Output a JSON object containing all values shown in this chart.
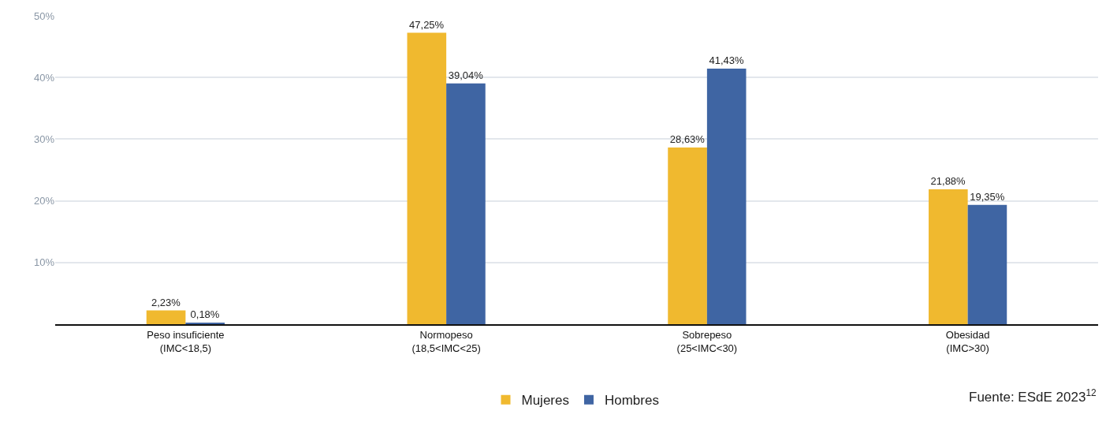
{
  "chart_data": {
    "type": "bar",
    "categories": [
      "Peso insuficiente\n(IMC<18,5)",
      "Normopeso\n(18,5<IMC<25)",
      "Sobrepeso\n(25<IMC<30)",
      "Obesidad\n(IMC>30)"
    ],
    "series": [
      {
        "name": "Mujeres",
        "color": "#f0b92f",
        "values": [
          2.23,
          47.25,
          28.63,
          21.88
        ],
        "value_labels": [
          "2,23%",
          "47,25%",
          "28,63%",
          "21,88%"
        ]
      },
      {
        "name": "Hombres",
        "color": "#3f65a3",
        "values": [
          0.18,
          39.04,
          41.43,
          19.35
        ],
        "value_labels": [
          "0,18%",
          "39,04%",
          "41,43%",
          "19,35%"
        ]
      }
    ],
    "ylim": [
      0,
      50
    ],
    "yticks": [
      {
        "value": 10,
        "label": "10%"
      },
      {
        "value": 20,
        "label": "20%"
      },
      {
        "value": 30,
        "label": "30%"
      },
      {
        "value": 40,
        "label": "40%"
      },
      {
        "value": 50,
        "label": "50%"
      }
    ],
    "grid": "y",
    "legend": "bottom",
    "annotations": [
      "Fuente: ESdE 2023$^{12}$"
    ]
  }
}
